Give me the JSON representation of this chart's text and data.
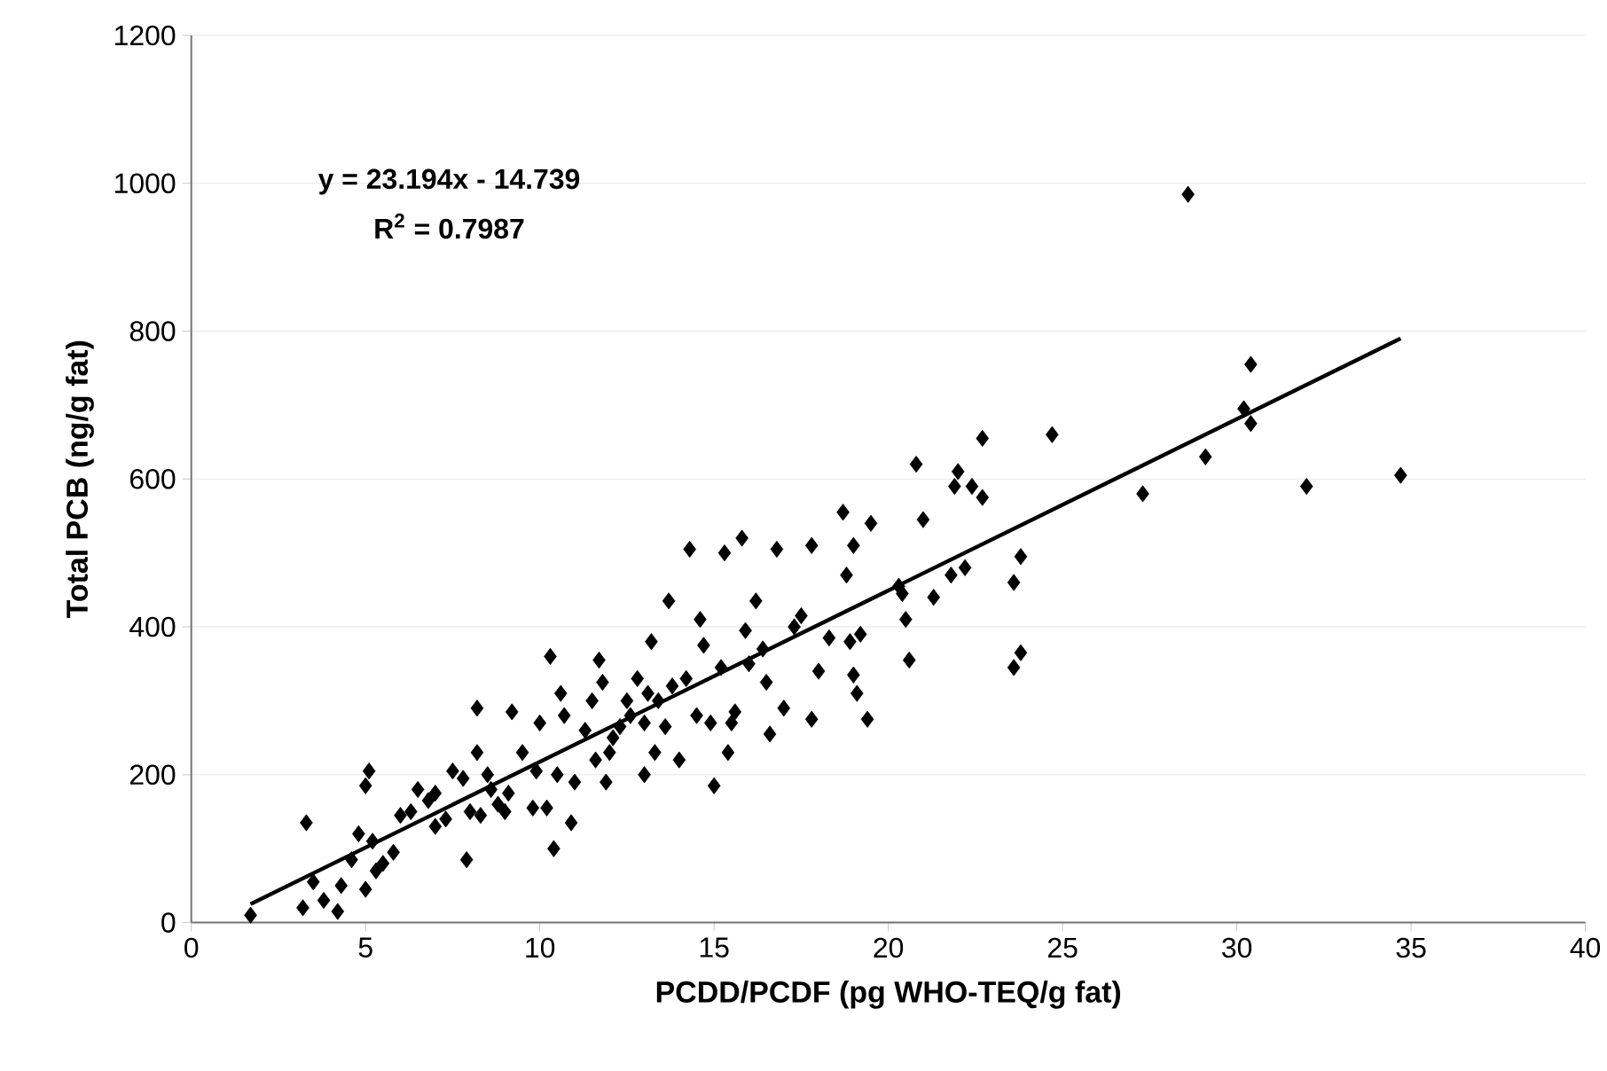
{
  "chart_data": {
    "type": "scatter",
    "xlabel": "PCDD/PCDF (pg WHO-TEQ/g fat)",
    "ylabel": "Total PCB (ng/g fat)",
    "annotations": [
      "y = 23.194x - 14.739",
      "R$^{2}$ = 0.7987"
    ],
    "xlim": [
      0,
      40
    ],
    "xticks": [
      0,
      5,
      10,
      15,
      20,
      25,
      30,
      35,
      40
    ],
    "ylim": [
      0,
      1200
    ],
    "yticks": [
      0,
      200,
      400,
      600,
      800,
      1000,
      1200
    ],
    "grid": "y",
    "marker": "diamond",
    "series": [
      {
        "color": "#000000",
        "x": [
          1.7,
          3.2,
          3.3,
          3.5,
          3.8,
          4.2,
          4.3,
          4.6,
          4.8,
          5.0,
          5.0,
          5.1,
          5.2,
          5.3,
          5.5,
          5.8,
          6.0,
          6.3,
          6.5,
          6.8,
          7.0,
          7.0,
          7.3,
          7.5,
          7.8,
          7.9,
          8.0,
          8.2,
          8.2,
          8.3,
          8.5,
          8.6,
          8.8,
          9.0,
          9.1,
          9.2,
          9.5,
          9.8,
          9.9,
          10.0,
          10.2,
          10.3,
          10.4,
          10.5,
          10.6,
          10.7,
          10.9,
          11.0,
          11.3,
          11.5,
          11.6,
          11.7,
          11.8,
          11.9,
          12.0,
          12.1,
          12.3,
          12.5,
          12.6,
          12.8,
          13.0,
          13.0,
          13.1,
          13.2,
          13.3,
          13.4,
          13.6,
          13.7,
          13.8,
          14.0,
          14.2,
          14.3,
          14.5,
          14.6,
          14.7,
          14.9,
          15.0,
          15.2,
          15.3,
          15.4,
          15.5,
          15.6,
          15.8,
          15.9,
          16.0,
          16.2,
          16.4,
          16.5,
          16.6,
          16.8,
          17.0,
          17.3,
          17.5,
          17.8,
          17.8,
          18.0,
          18.3,
          18.7,
          18.8,
          18.9,
          19.0,
          19.0,
          19.1,
          19.2,
          19.4,
          19.5,
          20.3,
          20.4,
          20.5,
          20.6,
          20.8,
          21.0,
          21.3,
          21.8,
          21.9,
          22.0,
          22.2,
          22.4,
          22.7,
          22.7,
          23.6,
          23.6,
          23.8,
          23.8,
          24.7,
          27.3,
          28.6,
          29.1,
          30.2,
          30.4,
          30.4,
          32.0,
          34.7
        ],
        "values": [
          10,
          20,
          135,
          55,
          30,
          15,
          50,
          85,
          120,
          45,
          185,
          205,
          110,
          70,
          80,
          95,
          145,
          150,
          180,
          165,
          130,
          175,
          140,
          205,
          195,
          85,
          150,
          290,
          230,
          145,
          200,
          180,
          160,
          150,
          175,
          285,
          230,
          155,
          205,
          270,
          155,
          360,
          100,
          200,
          310,
          280,
          135,
          190,
          260,
          300,
          220,
          355,
          325,
          190,
          230,
          250,
          265,
          300,
          280,
          330,
          270,
          200,
          310,
          380,
          230,
          300,
          265,
          435,
          320,
          220,
          330,
          505,
          280,
          410,
          375,
          270,
          185,
          345,
          500,
          230,
          270,
          285,
          520,
          395,
          350,
          435,
          370,
          325,
          255,
          505,
          290,
          400,
          415,
          275,
          510,
          340,
          385,
          555,
          470,
          380,
          510,
          335,
          310,
          390,
          275,
          540,
          455,
          445,
          410,
          355,
          620,
          545,
          440,
          470,
          590,
          610,
          480,
          590,
          575,
          655,
          345,
          460,
          365,
          495,
          660,
          580,
          985,
          630,
          695,
          675,
          755,
          590,
          605
        ]
      },
      {
        "type": "line",
        "color": "#000000",
        "marker": "none",
        "x": [
          1.7,
          34.7
        ],
        "values": [
          25,
          790
        ]
      }
    ]
  }
}
